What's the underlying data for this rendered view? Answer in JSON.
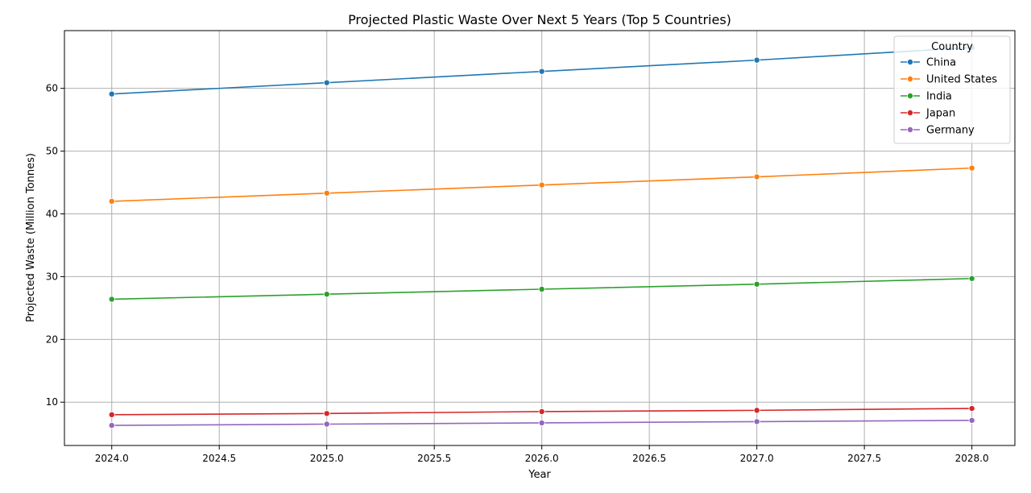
{
  "chart_data": {
    "type": "line",
    "title": "Projected Plastic Waste Over Next 5 Years (Top 5 Countries)",
    "xlabel": "Year",
    "ylabel": "Projected Waste (Million Tonnes)",
    "x": [
      2024,
      2025,
      2026,
      2027,
      2028
    ],
    "xlim": [
      2023.78,
      2028.2
    ],
    "ylim": [
      3.1,
      69.2
    ],
    "xticks": [
      "2024.0",
      "2024.5",
      "2025.0",
      "2025.5",
      "2026.0",
      "2026.5",
      "2027.0",
      "2027.5",
      "2028.0"
    ],
    "yticks": [
      "10",
      "20",
      "30",
      "40",
      "50",
      "60"
    ],
    "grid": true,
    "legend": {
      "title": "Country",
      "placement": "top-right"
    },
    "series": [
      {
        "name": "China",
        "color": "#1f77b4",
        "values": [
          59.1,
          60.9,
          62.7,
          64.5,
          66.5
        ]
      },
      {
        "name": "United States",
        "color": "#ff7f0e",
        "values": [
          42.0,
          43.3,
          44.6,
          45.9,
          47.3
        ]
      },
      {
        "name": "India",
        "color": "#2ca02c",
        "values": [
          26.4,
          27.2,
          28.0,
          28.8,
          29.7
        ]
      },
      {
        "name": "Japan",
        "color": "#d62728",
        "values": [
          8.0,
          8.2,
          8.5,
          8.7,
          9.0
        ]
      },
      {
        "name": "Germany",
        "color": "#9467bd",
        "values": [
          6.3,
          6.5,
          6.7,
          6.9,
          7.1
        ]
      }
    ]
  }
}
